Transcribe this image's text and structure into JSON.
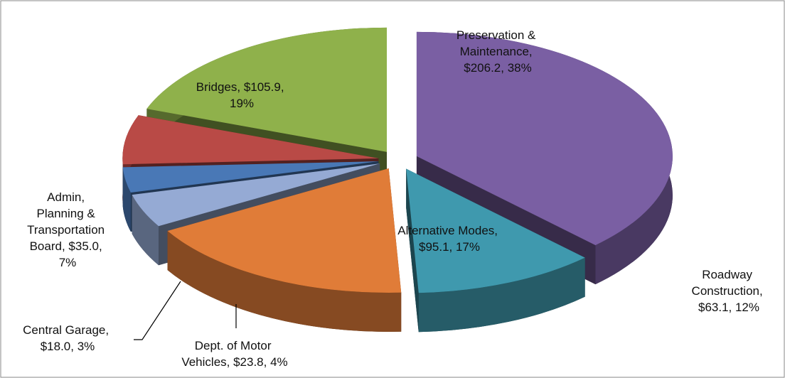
{
  "chart_data": {
    "type": "pie3d",
    "categories": [
      "Preservation & Maintenance",
      "Roadway Construction",
      "Alternative Modes",
      "Dept. of Motor Vehicles",
      "Central Garage",
      "Admin, Planning & Transportation Board",
      "Bridges"
    ],
    "values": [
      206.2,
      63.1,
      95.1,
      23.8,
      18.0,
      35.0,
      105.9
    ],
    "value_labels": [
      "Preservation & Maintenance, $206.2, 38%",
      "Roadway Construction, $63.1, 12%",
      "Alternative Modes, $95.1, 17%",
      "Dept. of Motor Vehicles, $23.8, 4%",
      "Central Garage, $18.0, 3%",
      "Admin, Planning & Transportation Board, $35.0, 7%",
      "Bridges, $105.9, 19%"
    ],
    "colors": [
      "#7a5fa3",
      "#3f99ae",
      "#e07c38",
      "#95aad4",
      "#4978b6",
      "#b94a46",
      "#8fb14b"
    ]
  }
}
